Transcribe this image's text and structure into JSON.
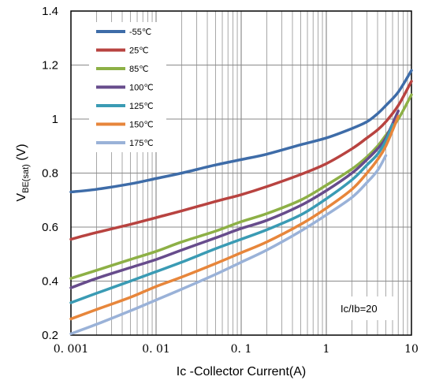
{
  "chart_data": {
    "type": "line",
    "xlabel": "Ic -Collector Current(A)",
    "ylabel_main": "V",
    "ylabel_sub": "BE(sat)",
    "ylabel_unit": " (V)",
    "annotation": "Ic/Ib=20",
    "x_scale": "log",
    "xlim": [
      0.001,
      10
    ],
    "ylim": [
      0.2,
      1.4
    ],
    "x_ticks": [
      "0. 001",
      "0. 01",
      "0. 1",
      "1",
      "10"
    ],
    "y_ticks": [
      "0.2",
      "0.4",
      "0.6",
      "0.8",
      "1",
      "1.2",
      "1.4"
    ],
    "grid": true,
    "legend_position": "top-left",
    "series": [
      {
        "name": "-55℃",
        "color": "#3E6CA8",
        "x": [
          0.001,
          0.002,
          0.005,
          0.01,
          0.02,
          0.05,
          0.1,
          0.2,
          0.5,
          1,
          2,
          3,
          4,
          5,
          7,
          10
        ],
        "y": [
          0.73,
          0.74,
          0.76,
          0.78,
          0.8,
          0.83,
          0.85,
          0.87,
          0.905,
          0.93,
          0.965,
          0.99,
          1.02,
          1.05,
          1.1,
          1.18
        ]
      },
      {
        "name": "25℃",
        "color": "#B84340",
        "x": [
          0.001,
          0.002,
          0.005,
          0.01,
          0.02,
          0.05,
          0.1,
          0.2,
          0.5,
          1,
          2,
          3,
          4,
          5,
          7,
          10
        ],
        "y": [
          0.555,
          0.58,
          0.61,
          0.635,
          0.66,
          0.695,
          0.72,
          0.75,
          0.795,
          0.835,
          0.89,
          0.93,
          0.96,
          0.99,
          1.05,
          1.14
        ]
      },
      {
        "name": "85℃",
        "color": "#8DB046",
        "x": [
          0.001,
          0.002,
          0.005,
          0.01,
          0.02,
          0.05,
          0.1,
          0.2,
          0.5,
          1,
          2,
          3,
          4,
          5,
          7,
          10
        ],
        "y": [
          0.41,
          0.44,
          0.48,
          0.51,
          0.545,
          0.585,
          0.62,
          0.65,
          0.7,
          0.755,
          0.815,
          0.86,
          0.9,
          0.94,
          1.0,
          1.09
        ]
      },
      {
        "name": "100℃",
        "color": "#674C8C",
        "x": [
          0.001,
          0.002,
          0.005,
          0.01,
          0.02,
          0.05,
          0.1,
          0.2,
          0.5,
          1,
          2,
          3,
          4,
          5,
          7
        ],
        "y": [
          0.375,
          0.41,
          0.45,
          0.48,
          0.515,
          0.56,
          0.595,
          0.625,
          0.68,
          0.735,
          0.8,
          0.85,
          0.89,
          0.93,
          1.03
        ]
      },
      {
        "name": "125℃",
        "color": "#3A9BB4",
        "x": [
          0.001,
          0.002,
          0.005,
          0.01,
          0.02,
          0.05,
          0.1,
          0.2,
          0.5,
          1,
          2,
          3,
          4,
          5,
          6
        ],
        "y": [
          0.32,
          0.355,
          0.4,
          0.435,
          0.47,
          0.52,
          0.555,
          0.59,
          0.645,
          0.705,
          0.775,
          0.83,
          0.87,
          0.92,
          0.98
        ]
      },
      {
        "name": "150℃",
        "color": "#E7863B",
        "x": [
          0.001,
          0.002,
          0.005,
          0.01,
          0.02,
          0.05,
          0.1,
          0.2,
          0.5,
          1,
          2,
          3,
          4,
          5,
          7
        ],
        "y": [
          0.26,
          0.295,
          0.34,
          0.38,
          0.415,
          0.465,
          0.505,
          0.545,
          0.61,
          0.67,
          0.74,
          0.8,
          0.85,
          0.9,
          1.01
        ]
      },
      {
        "name": "175℃",
        "color": "#9AB2D8",
        "x": [
          0.001,
          0.002,
          0.005,
          0.01,
          0.02,
          0.05,
          0.1,
          0.2,
          0.5,
          1,
          2,
          3,
          4,
          5
        ],
        "y": [
          0.205,
          0.24,
          0.29,
          0.33,
          0.37,
          0.425,
          0.47,
          0.515,
          0.585,
          0.645,
          0.71,
          0.765,
          0.81,
          0.865
        ]
      }
    ]
  }
}
